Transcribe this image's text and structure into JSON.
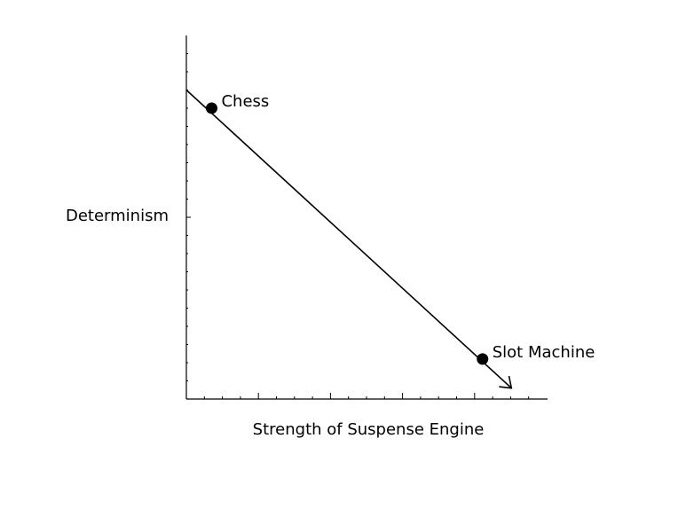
{
  "diagram": {
    "y_axis_label": "Determinism",
    "x_axis_label": "Strength of Suspense Engine",
    "points": [
      {
        "id": "chess",
        "label": "Chess",
        "strength": 0.07,
        "determinism": 0.8
      },
      {
        "id": "slot-machine",
        "label": "Slot Machine",
        "strength": 0.82,
        "determinism": 0.11
      }
    ],
    "trend_line": {
      "from": {
        "strength": 0.0,
        "determinism": 0.85
      },
      "to": {
        "strength": 0.9,
        "determinism": 0.03
      },
      "arrow_at_end": true
    },
    "ink_color": "#000000"
  }
}
